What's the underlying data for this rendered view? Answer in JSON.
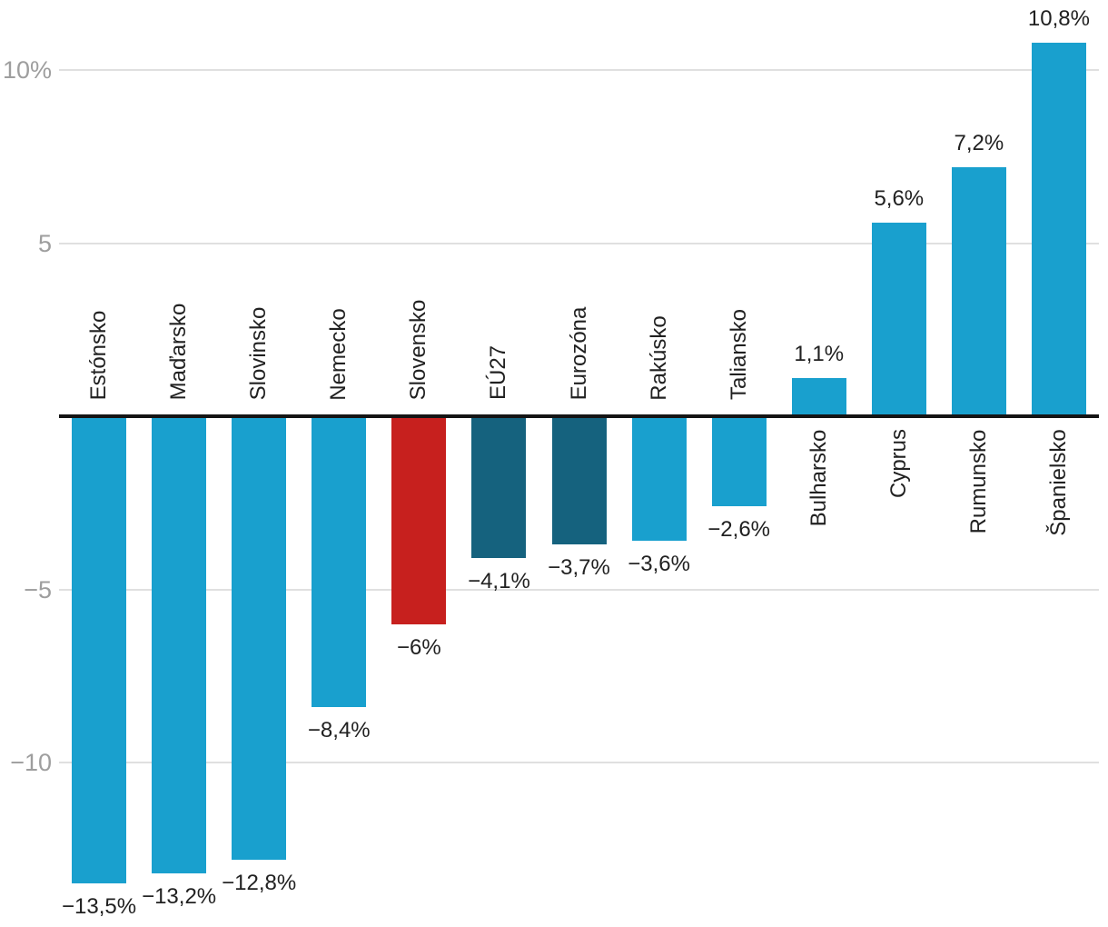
{
  "chart_data": {
    "type": "bar",
    "categories": [
      "Estónsko",
      "Maďarsko",
      "Slovinsko",
      "Nemecko",
      "Slovensko",
      "EÚ27",
      "Eurozóna",
      "Rakúsko",
      "Taliansko",
      "Bulharsko",
      "Cyprus",
      "Rumunsko",
      "Španielsko"
    ],
    "values": [
      -13.5,
      -13.2,
      -12.8,
      -8.4,
      -6,
      -4.1,
      -3.7,
      -3.6,
      -2.6,
      1.1,
      5.6,
      7.2,
      10.8
    ],
    "value_labels": [
      "−13,5%",
      "−13,2%",
      "−12,8%",
      "−8,4%",
      "−6%",
      "−4,1%",
      "−3,7%",
      "−3,6%",
      "−2,6%",
      "1,1%",
      "5,6%",
      "7,2%",
      "10,8%"
    ],
    "bar_roles": [
      "default",
      "default",
      "default",
      "default",
      "highlight",
      "aggregate",
      "aggregate",
      "default",
      "default",
      "default",
      "default",
      "default",
      "default"
    ],
    "yticks": [
      {
        "value": 10,
        "label": "10%"
      },
      {
        "value": 5,
        "label": "5"
      },
      {
        "value": -5,
        "label": "−5"
      },
      {
        "value": -10,
        "label": "−10"
      }
    ],
    "ylim": [
      -14.7,
      12.0
    ],
    "title": "",
    "xlabel": "",
    "ylabel": "",
    "grid": true,
    "legend": false
  },
  "colors": {
    "default": "#19A0CE",
    "highlight": "#C7201E",
    "aggregate": "#15627E",
    "gridline": "#E0E0E0",
    "axis_line": "#141414",
    "tick_label": "#9E9E9E",
    "text": "#212121",
    "background": "#FFFFFF"
  }
}
